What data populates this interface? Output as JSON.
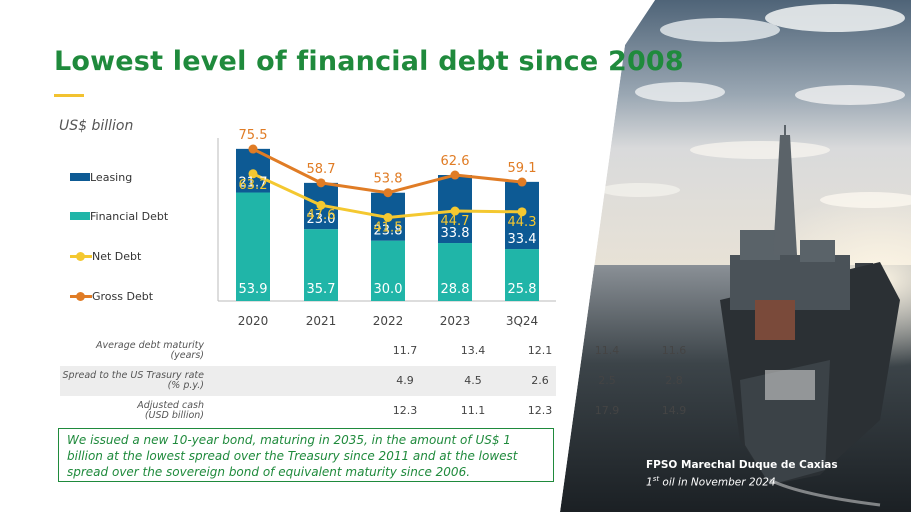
{
  "title": "Lowest level of financial debt since 2008",
  "unit_label": "US$ billion",
  "legend": {
    "leasing": "Leasing",
    "financial_debt": "Financial Debt",
    "net_debt": "Net Debt",
    "gross_debt": "Gross Debt"
  },
  "colors": {
    "leasing": "#0d5a94",
    "financial_debt": "#20b5a8",
    "net_debt": "#f4c830",
    "gross_debt": "#e07c25",
    "title_green": "#1f8a3c"
  },
  "chart_data": {
    "type": "bar",
    "stacked": true,
    "categories": [
      "2020",
      "2021",
      "2022",
      "2023",
      "3Q24"
    ],
    "series": [
      {
        "name": "Financial Debt",
        "values": [
          53.9,
          35.7,
          30.0,
          28.8,
          25.8
        ]
      },
      {
        "name": "Leasing",
        "values": [
          21.7,
          23.0,
          23.8,
          33.8,
          33.4
        ]
      },
      {
        "name": "Net Debt",
        "type": "line",
        "values": [
          63.2,
          47.6,
          41.5,
          44.7,
          44.3
        ]
      },
      {
        "name": "Gross Debt",
        "type": "line",
        "values": [
          75.5,
          58.7,
          53.8,
          62.6,
          59.1
        ]
      }
    ],
    "ylim": [
      0,
      80
    ],
    "legend_position": "left",
    "grid": false
  },
  "table": {
    "rows": [
      {
        "label_line1": "Average debt maturity",
        "label_line2": "(years)",
        "values": [
          "11.7",
          "13.4",
          "12.1",
          "11.4",
          "11.6"
        ]
      },
      {
        "label_line1": "Spread to the US Trasury rate",
        "label_line2": "(% p.y.)",
        "values": [
          "4.9",
          "4.5",
          "2.6",
          "2.5",
          "2.8"
        ]
      },
      {
        "label_line1": "Adjusted cash",
        "label_line2": "(USD billion)",
        "values": [
          "12.3",
          "11.1",
          "12.3",
          "17.9",
          "14.9"
        ]
      }
    ]
  },
  "note": "We issued a new 10-year bond, maturing in 2035, in the amount of US$ 1 billion at the lowest spread over the Treasury since 2011 and at the lowest spread over the sovereign bond of equivalent maturity since 2006.",
  "caption": {
    "title": "FPSO Marechal Duque de Caxias",
    "sub_num": "1",
    "sub_sup": "st",
    "sub_rest": " oil in November 2024"
  }
}
